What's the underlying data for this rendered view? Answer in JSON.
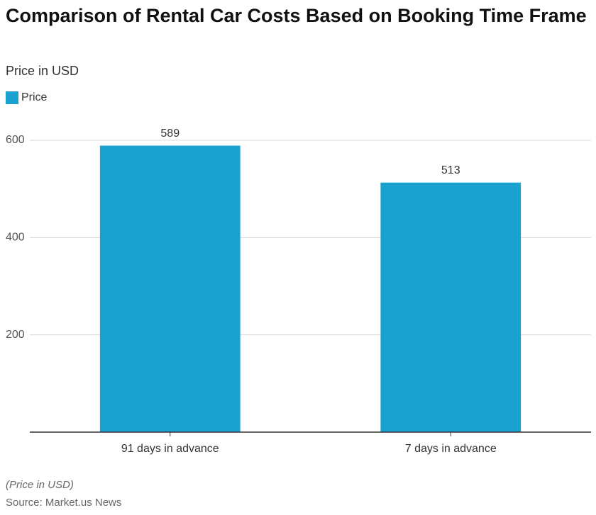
{
  "chart_data": {
    "type": "bar",
    "title": "Comparison of Rental Car Costs Based on Booking Time Frame",
    "subtitle": "Price in USD",
    "categories": [
      "91 days in advance",
      "7 days in advance"
    ],
    "series": [
      {
        "name": "Price",
        "color": "#1ba1cf",
        "values": [
          589,
          513
        ]
      }
    ],
    "ylim": [
      0,
      600
    ],
    "yticks": [
      200,
      400,
      600
    ],
    "grid": true,
    "legend": "top-left",
    "footnote": "(Price in USD)",
    "source": "Source: Market.us News"
  }
}
